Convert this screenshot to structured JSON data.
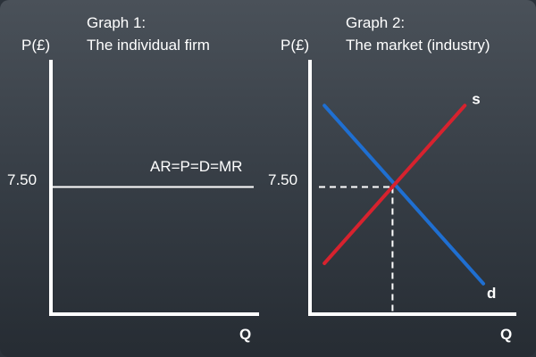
{
  "graph1": {
    "heading_line1": "Graph 1:",
    "heading_line2": "The individual firm",
    "ylabel": "P(£)",
    "xlabel": "Q",
    "price_label": "7.50",
    "line_label": "AR=P=D=MR"
  },
  "graph2": {
    "heading_line1": "Graph 2:",
    "heading_line2": "The market (industry)",
    "ylabel": "P(£)",
    "xlabel": "Q",
    "price_label": "7.50",
    "supply_label": "s",
    "demand_label": "d"
  },
  "colors": {
    "supply": "#d7222e",
    "demand": "#1f6fd1",
    "axes": "#ffffff",
    "background": "#3b4249"
  },
  "chart_data": [
    {
      "type": "line",
      "title": "The individual firm",
      "xlabel": "Q",
      "ylabel": "P(£)",
      "ylim": [
        0,
        15
      ],
      "series": [
        {
          "name": "AR=P=D=MR",
          "x": [
            0,
            10
          ],
          "y": [
            7.5,
            7.5
          ]
        }
      ]
    },
    {
      "type": "line",
      "title": "The market (industry)",
      "xlabel": "Q",
      "ylabel": "P(£)",
      "ylim": [
        0,
        15
      ],
      "xlim": [
        0,
        10
      ],
      "series": [
        {
          "name": "s",
          "x": [
            0.7,
            7.5
          ],
          "y": [
            3,
            12.3
          ]
        },
        {
          "name": "d",
          "x": [
            0.7,
            8.4
          ],
          "y": [
            12.3,
            1.8
          ]
        }
      ],
      "equilibrium": {
        "x": 4,
        "y": 7.5
      }
    }
  ]
}
